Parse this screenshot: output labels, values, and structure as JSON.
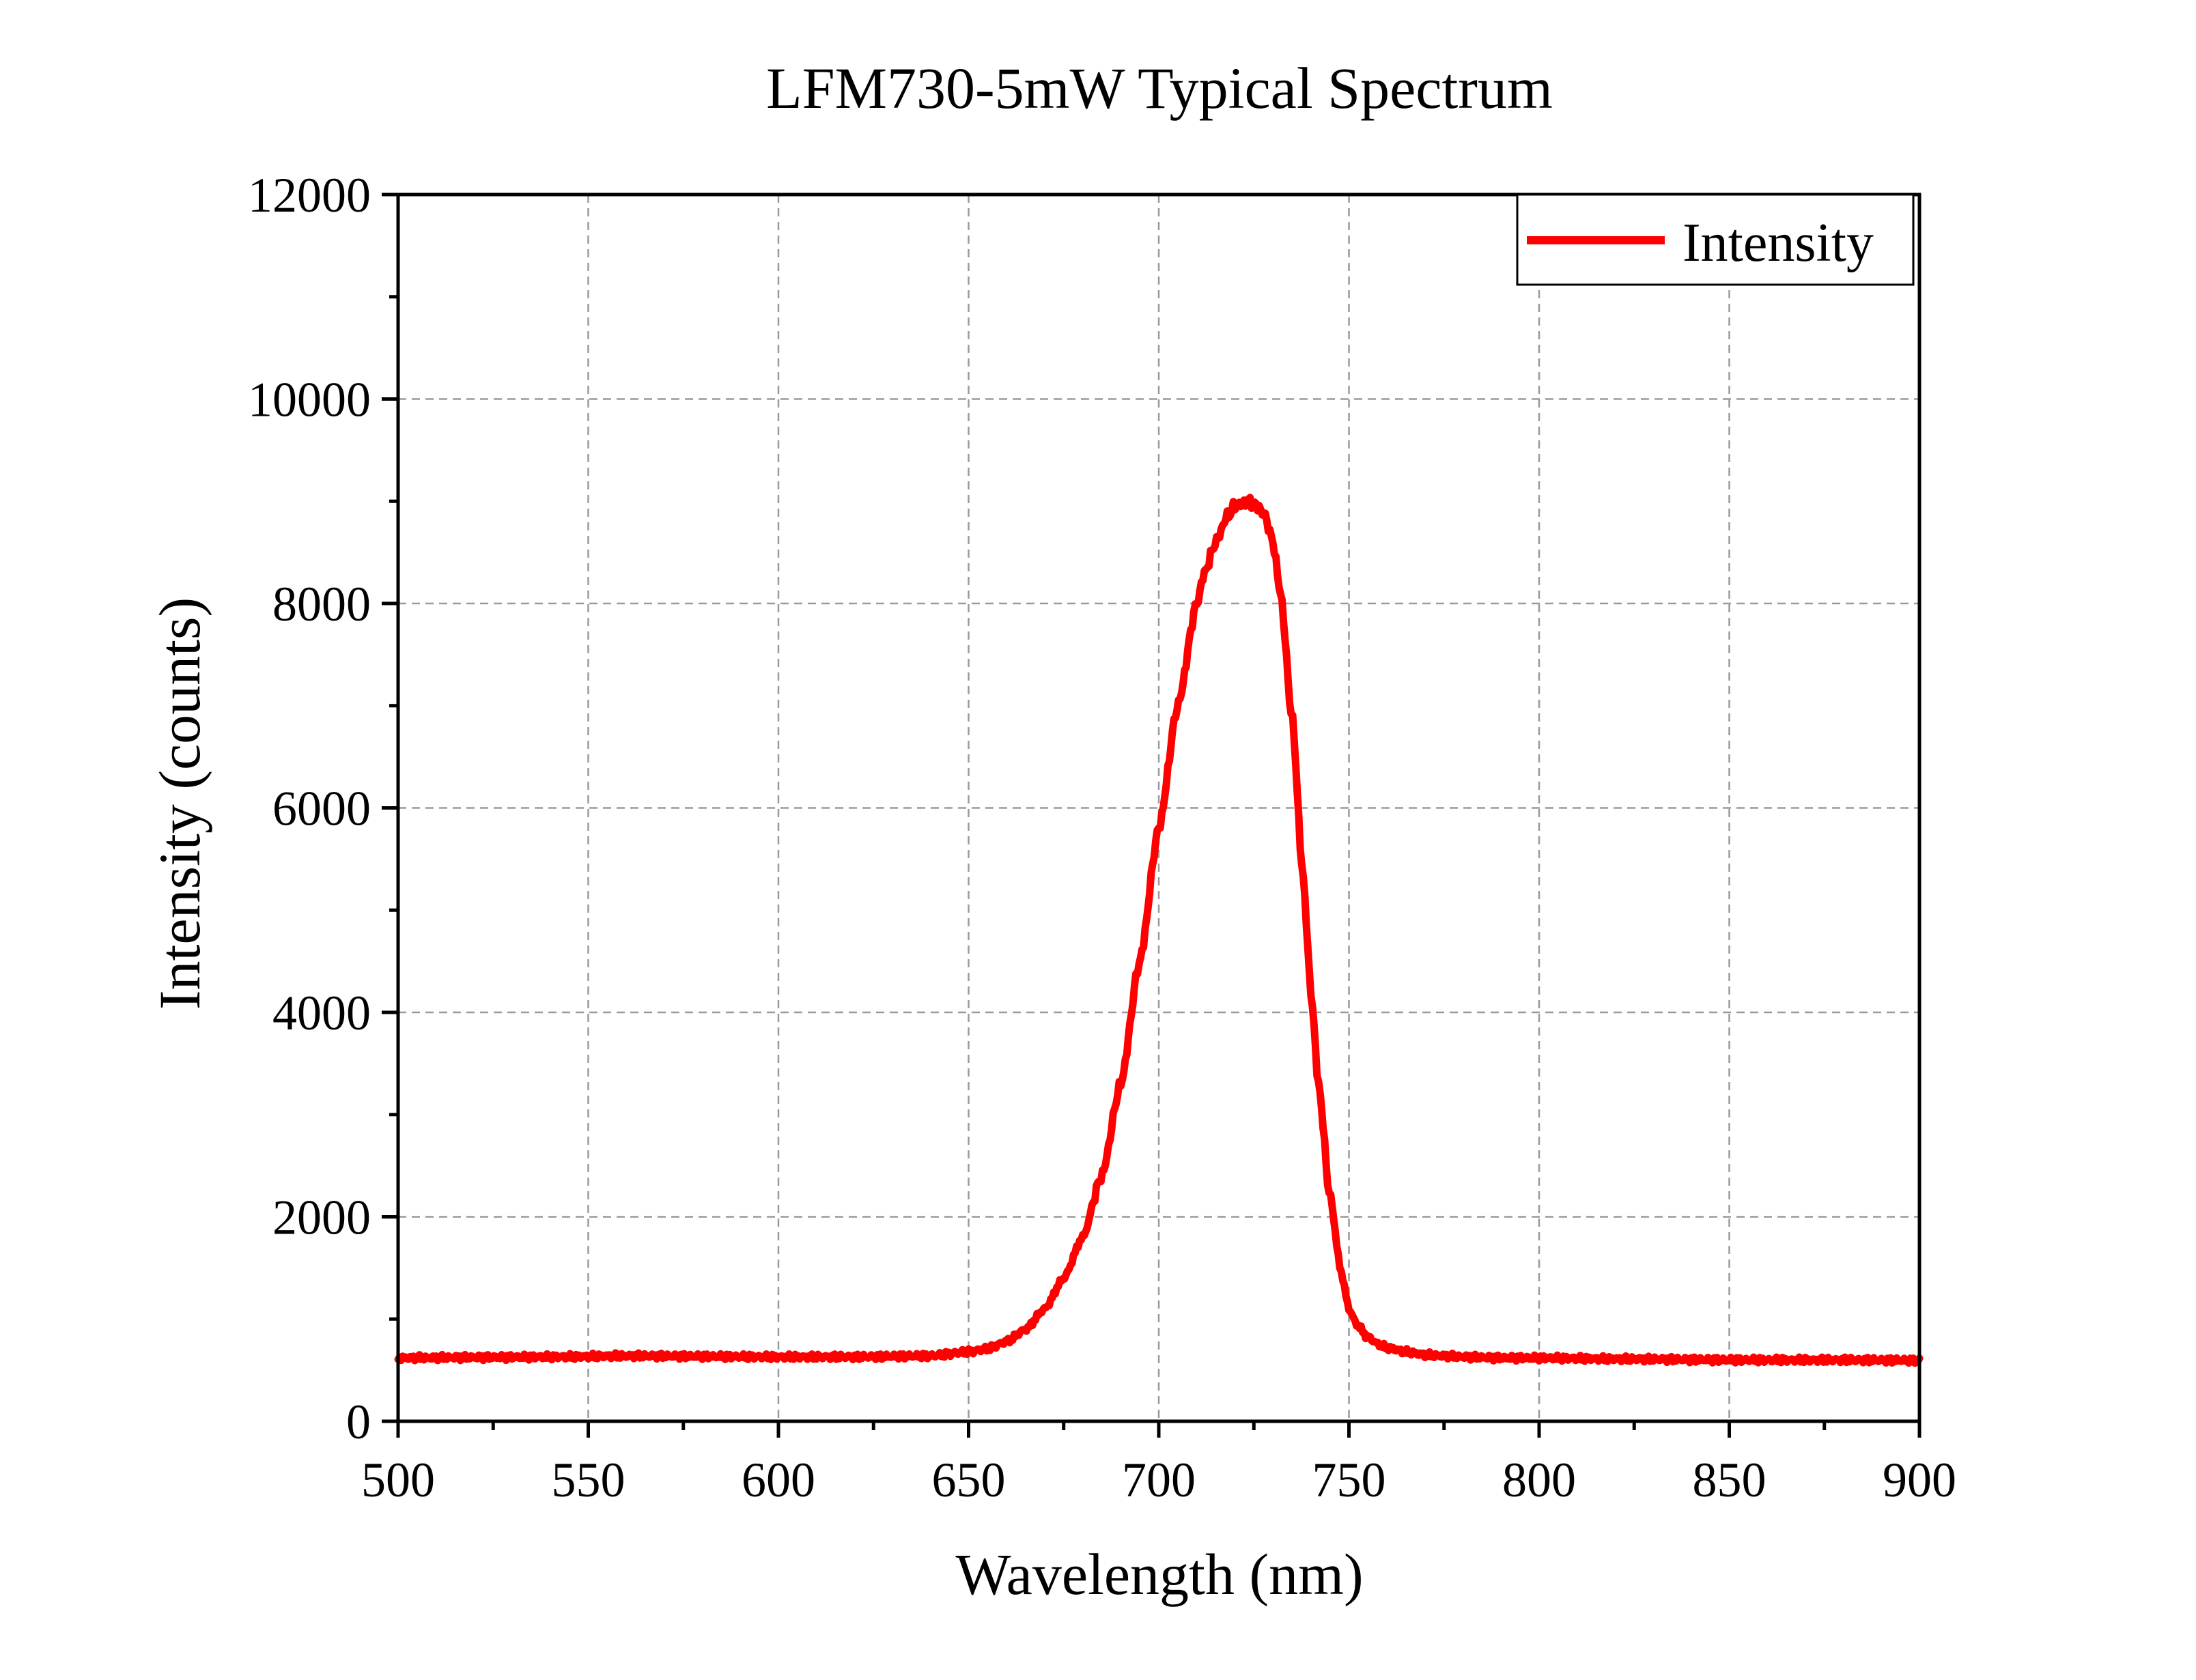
{
  "chart_data": {
    "type": "line",
    "title": "LFM730-5mW Typical Spectrum",
    "xlabel": "Wavelength (nm)",
    "ylabel": "Intensity (counts)",
    "xlim": [
      500,
      900
    ],
    "ylim": [
      0,
      12000
    ],
    "x_ticks": [
      "500",
      "550",
      "600",
      "650",
      "700",
      "750",
      "800",
      "850",
      "900"
    ],
    "y_ticks": [
      "0",
      "2000",
      "4000",
      "6000",
      "8000",
      "10000",
      "12000"
    ],
    "grid": true,
    "legend_position": "top-right",
    "series": [
      {
        "name": "Intensity",
        "color": "#ff0000",
        "x": [
          500,
          520,
          540,
          560,
          580,
          600,
          620,
          640,
          650,
          655,
          660,
          665,
          670,
          675,
          680,
          685,
          690,
          695,
          700,
          705,
          710,
          712,
          715,
          718,
          720,
          722,
          724,
          726,
          728,
          730,
          732,
          735,
          738,
          740,
          742,
          745,
          748,
          750,
          752,
          755,
          758,
          760,
          765,
          770,
          775,
          780,
          790,
          800,
          820,
          850,
          880,
          900
        ],
        "y": [
          620,
          625,
          630,
          640,
          635,
          630,
          630,
          640,
          680,
          710,
          780,
          900,
          1100,
          1400,
          1800,
          2400,
          3300,
          4500,
          5800,
          7000,
          8000,
          8300,
          8600,
          8850,
          8950,
          8980,
          9000,
          8950,
          8850,
          8600,
          8100,
          6900,
          5300,
          4200,
          3300,
          2200,
          1450,
          1100,
          950,
          820,
          750,
          720,
          680,
          650,
          640,
          630,
          620,
          620,
          610,
          600,
          600,
          595
        ]
      }
    ]
  }
}
